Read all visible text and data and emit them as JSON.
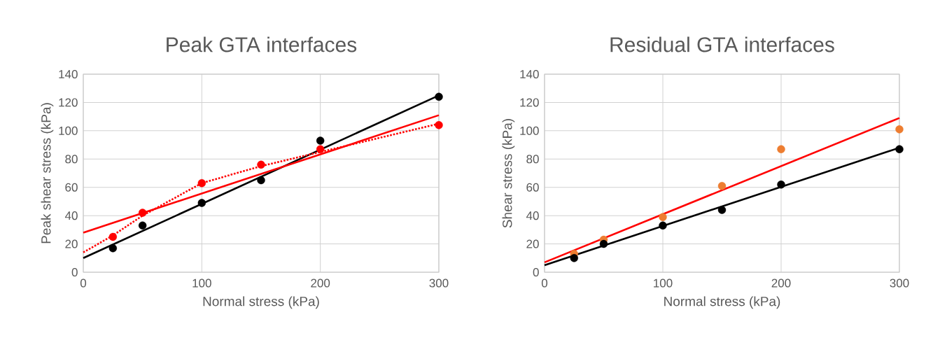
{
  "chart_data": [
    {
      "type": "scatter",
      "title": "Peak GTA interfaces",
      "xlabel": "Normal stress (kPa)",
      "ylabel": "Peak shear stress (kPa)",
      "xlim": [
        0,
        300
      ],
      "ylim": [
        0,
        140
      ],
      "xticks": [
        0,
        100,
        200,
        300
      ],
      "yticks": [
        0,
        20,
        40,
        60,
        80,
        100,
        120,
        140
      ],
      "grid": true,
      "series": [
        {
          "type": "line",
          "color": "#000000",
          "x": [
            0,
            300
          ],
          "values": [
            10,
            125
          ],
          "marker": "none",
          "line_style": "solid"
        },
        {
          "type": "line",
          "color": "#ff0000",
          "x": [
            0,
            300
          ],
          "values": [
            28,
            111
          ],
          "marker": "none",
          "line_style": "solid"
        },
        {
          "type": "line",
          "color": "#ff0000",
          "x": [
            0,
            25,
            50,
            100,
            150,
            200,
            250,
            300
          ],
          "values": [
            14,
            26,
            40,
            63,
            75,
            85,
            95,
            105
          ],
          "marker": "none",
          "line_style": "dotted"
        },
        {
          "color": "#000000",
          "x": [
            25,
            50,
            100,
            150,
            200,
            300
          ],
          "values": [
            17,
            33,
            49,
            65,
            93,
            124
          ],
          "marker": "circle"
        },
        {
          "color": "#ff0000",
          "x": [
            25,
            50,
            100,
            150,
            200,
            300
          ],
          "values": [
            25,
            42,
            63,
            76,
            87,
            104
          ],
          "marker": "circle"
        }
      ]
    },
    {
      "type": "scatter",
      "title": "Residual GTA interfaces",
      "xlabel": "Normal stress (kPa)",
      "ylabel": "Shear stress (kPa)",
      "xlim": [
        0,
        300
      ],
      "ylim": [
        0,
        140
      ],
      "xticks": [
        0,
        100,
        200,
        300
      ],
      "yticks": [
        0,
        20,
        40,
        60,
        80,
        100,
        120,
        140
      ],
      "grid": true,
      "series": [
        {
          "color": "#ed7d31",
          "x": [
            25,
            50,
            100,
            150,
            200,
            300
          ],
          "values": [
            13,
            23,
            39,
            61,
            87,
            101
          ],
          "marker": "circle"
        },
        {
          "type": "line",
          "color": "#ff0000",
          "x": [
            0,
            300
          ],
          "values": [
            7,
            109
          ],
          "marker": "none",
          "line_style": "solid"
        },
        {
          "type": "line",
          "color": "#000000",
          "x": [
            0,
            300
          ],
          "values": [
            5,
            88
          ],
          "marker": "none",
          "line_style": "solid"
        },
        {
          "color": "#000000",
          "x": [
            25,
            50,
            100,
            150,
            200,
            300
          ],
          "values": [
            10,
            20,
            33,
            44,
            62,
            87
          ],
          "marker": "circle"
        }
      ]
    }
  ]
}
